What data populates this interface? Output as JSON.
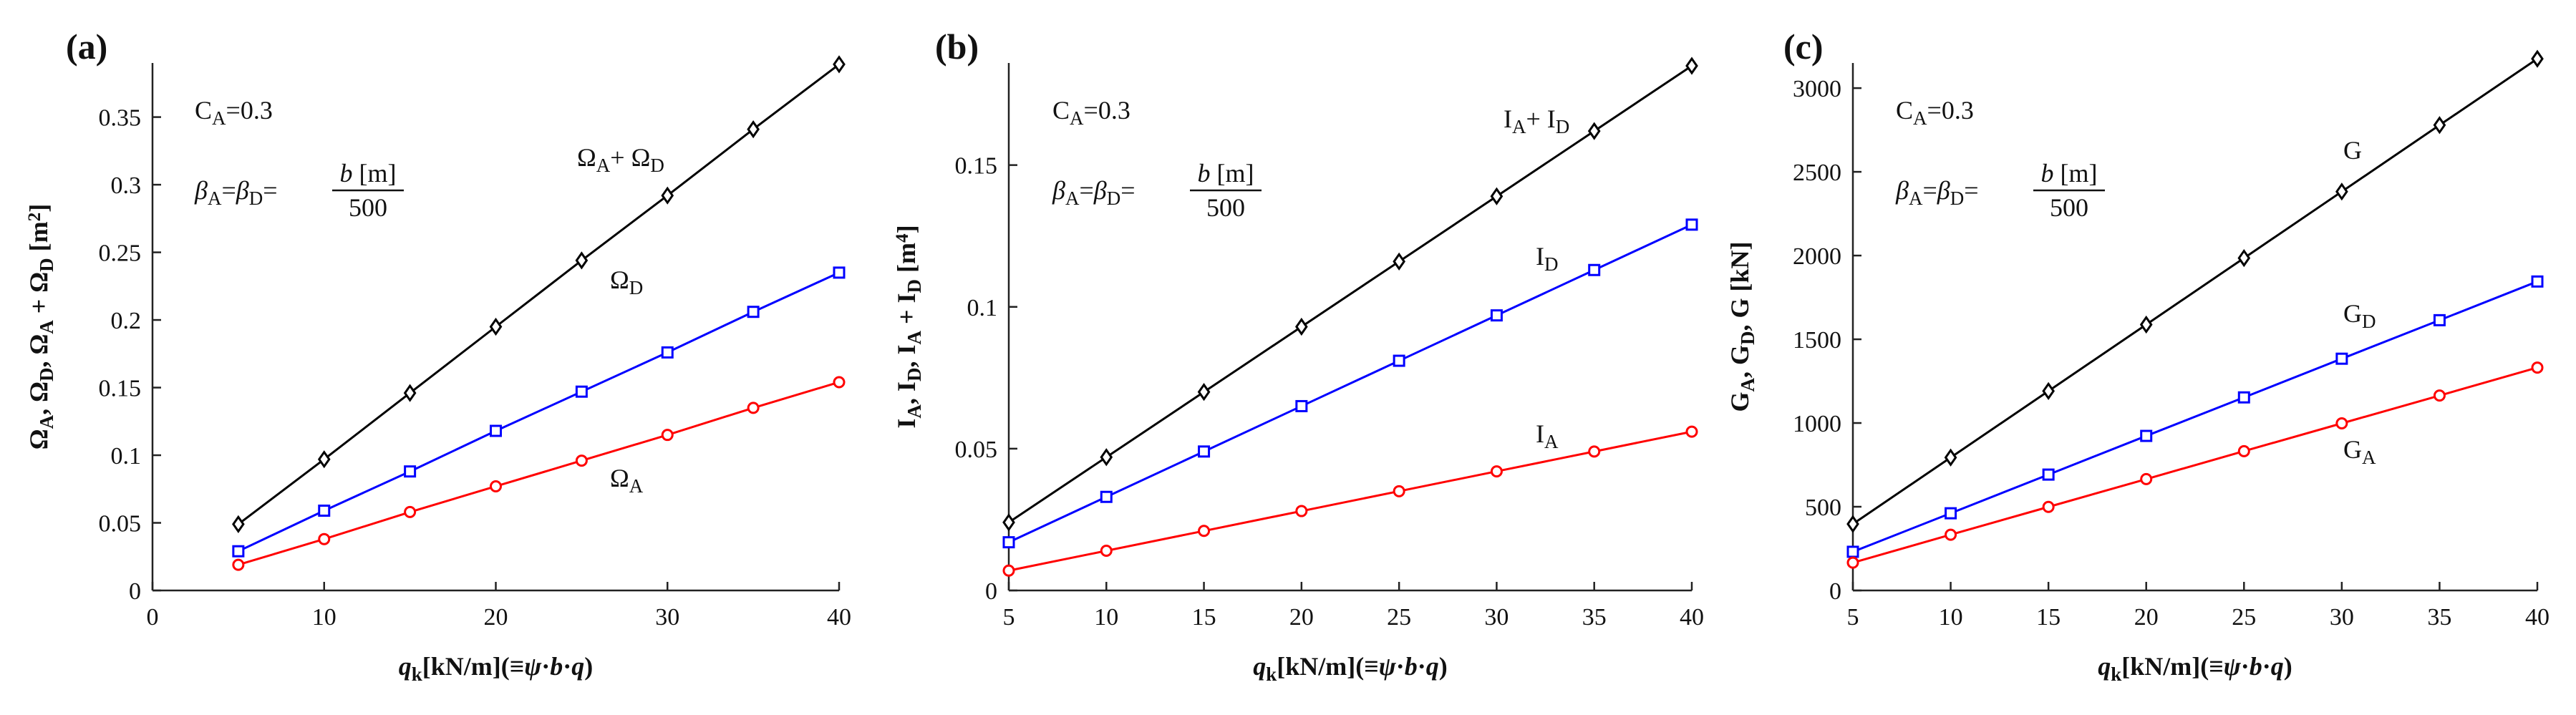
{
  "chart_data": [
    {
      "type": "line",
      "panel": "(a)",
      "xlabel": {
        "var": "q",
        "sub": "k",
        "rest": "[kN/m](≡",
        "psi": "ψ",
        "b": "b",
        "q": "q",
        "dot": "·",
        "close": ")"
      },
      "ylabel_text": "ΩA, ΩD, ΩA + ΩD [m²]",
      "xlim": [
        0,
        40
      ],
      "ylim": [
        0,
        0.39
      ],
      "xticks": [
        0,
        10,
        20,
        30,
        40
      ],
      "xtick_labels": [
        "0",
        "10",
        "20",
        "30",
        "40"
      ],
      "yticks": [
        0,
        0.05,
        0.1,
        0.15,
        0.2,
        0.25,
        0.3,
        0.35
      ],
      "ytick_labels": [
        "0",
        "0.05",
        "0.1",
        "0.15",
        "0.2",
        "0.25",
        "0.3",
        "0.35"
      ],
      "x": [
        5,
        10,
        15,
        20,
        25,
        30,
        35,
        40
      ],
      "series": [
        {
          "name": "ΩA + ΩD",
          "color": "#000000",
          "marker": "diamond",
          "values": [
            0.049,
            0.097,
            0.146,
            0.195,
            0.244,
            0.292,
            0.341,
            0.389
          ],
          "label": {
            "base": "Ω",
            "sub": "A",
            "plus": "+ Ω",
            "sub2": "D"
          }
        },
        {
          "name": "ΩD",
          "color": "#0000ff",
          "marker": "square",
          "values": [
            0.029,
            0.059,
            0.088,
            0.118,
            0.147,
            0.176,
            0.206,
            0.235
          ],
          "label": {
            "base": "Ω",
            "sub": "D"
          }
        },
        {
          "name": "ΩA",
          "color": "#ff0000",
          "marker": "circle",
          "values": [
            0.019,
            0.038,
            0.058,
            0.077,
            0.096,
            0.115,
            0.135,
            0.154
          ],
          "label": {
            "base": "Ω",
            "sub": "A"
          }
        }
      ]
    },
    {
      "type": "line",
      "panel": "(b)",
      "xlabel": {
        "var": "q",
        "sub": "k",
        "rest": "[kN/m](≡",
        "psi": "ψ",
        "b": "b",
        "q": "q",
        "dot": "·",
        "close": ")"
      },
      "ylabel_text": "IA, ID, IA + ID [m⁴]",
      "xlim": [
        5,
        40
      ],
      "ylim": [
        0,
        0.186
      ],
      "xticks": [
        5,
        10,
        15,
        20,
        25,
        30,
        35,
        40
      ],
      "xtick_labels": [
        "5",
        "10",
        "15",
        "20",
        "25",
        "30",
        "35",
        "40"
      ],
      "yticks": [
        0,
        0.05,
        0.1,
        0.15
      ],
      "ytick_labels": [
        "0",
        "0.05",
        "0.1",
        "0.15"
      ],
      "x": [
        5,
        10,
        15,
        20,
        25,
        30,
        35,
        40
      ],
      "series": [
        {
          "name": "IA + ID",
          "color": "#000000",
          "marker": "diamond",
          "values": [
            0.024,
            0.047,
            0.07,
            0.093,
            0.116,
            0.139,
            0.162,
            0.185
          ],
          "label": {
            "base": "I",
            "sub": "A",
            "plus": "+ I",
            "sub2": "D"
          }
        },
        {
          "name": "ID",
          "color": "#0000ff",
          "marker": "square",
          "values": [
            0.017,
            0.033,
            0.049,
            0.065,
            0.081,
            0.097,
            0.113,
            0.129
          ],
          "label": {
            "base": "I",
            "sub": "D"
          }
        },
        {
          "name": "IA",
          "color": "#ff0000",
          "marker": "circle",
          "values": [
            0.007,
            0.014,
            0.021,
            0.028,
            0.035,
            0.042,
            0.049,
            0.056
          ],
          "label": {
            "base": "I",
            "sub": "A"
          }
        }
      ]
    },
    {
      "type": "line",
      "panel": "(c)",
      "xlabel": {
        "var": "q",
        "sub": "k",
        "rest": "[kN/m](≡",
        "psi": "ψ",
        "b": "b",
        "q": "q",
        "dot": "·",
        "close": ")"
      },
      "ylabel_text": "GA, GD, G [kN]",
      "xlim": [
        5,
        40
      ],
      "ylim": [
        0,
        3150
      ],
      "xticks": [
        5,
        10,
        15,
        20,
        25,
        30,
        35,
        40
      ],
      "xtick_labels": [
        "5",
        "10",
        "15",
        "20",
        "25",
        "30",
        "35",
        "40"
      ],
      "yticks": [
        0,
        500,
        1000,
        1500,
        2000,
        2500,
        3000
      ],
      "ytick_labels": [
        "0",
        "500",
        "1000",
        "1500",
        "2000",
        "2500",
        "3000"
      ],
      "x": [
        5,
        10,
        15,
        20,
        25,
        30,
        35,
        40
      ],
      "series": [
        {
          "name": "G",
          "color": "#000000",
          "marker": "diamond",
          "values": [
            397,
            794,
            1191,
            1588,
            1985,
            2382,
            2779,
            3175
          ],
          "label": {
            "base": "G",
            "sub": ""
          }
        },
        {
          "name": "GD",
          "color": "#0000ff",
          "marker": "square",
          "values": [
            231,
            461,
            692,
            923,
            1153,
            1384,
            1614,
            1845
          ],
          "label": {
            "base": "G",
            "sub": "D"
          }
        },
        {
          "name": "GA",
          "color": "#ff0000",
          "marker": "circle",
          "values": [
            166,
            333,
            499,
            665,
            832,
            998,
            1164,
            1331
          ],
          "label": {
            "base": "G",
            "sub": "A"
          }
        }
      ]
    }
  ],
  "annotations": {
    "ca": {
      "var": "C",
      "sub": "A",
      "rest": "=0.3"
    },
    "beta": {
      "b1": "β",
      "s1": "A",
      "eq1": "=",
      "b2": "β",
      "s2": "D",
      "eq2": "=",
      "num": "b [m]",
      "den": "500"
    }
  },
  "ylabel_parts": [
    [
      {
        "t": "Ω"
      },
      {
        "t": "A",
        "sub": true
      },
      {
        "t": ", Ω"
      },
      {
        "t": "D",
        "sub": true
      },
      {
        "t": ", Ω"
      },
      {
        "t": "A",
        "sub": true
      },
      {
        "t": " + Ω"
      },
      {
        "t": "D",
        "sub": true
      },
      {
        "t": " [m"
      },
      {
        "t": "2",
        "sup": true
      },
      {
        "t": "]"
      }
    ],
    [
      {
        "t": "I"
      },
      {
        "t": "A",
        "sub": true
      },
      {
        "t": ", I"
      },
      {
        "t": "D",
        "sub": true
      },
      {
        "t": ", I"
      },
      {
        "t": "A",
        "sub": true
      },
      {
        "t": " + I"
      },
      {
        "t": "D",
        "sub": true
      },
      {
        "t": " [m"
      },
      {
        "t": "4",
        "sup": true
      },
      {
        "t": "]"
      }
    ],
    [
      {
        "t": "G"
      },
      {
        "t": "A",
        "sub": true
      },
      {
        "t": ", G"
      },
      {
        "t": "D",
        "sub": true
      },
      {
        "t": ", G [kN]"
      }
    ]
  ]
}
